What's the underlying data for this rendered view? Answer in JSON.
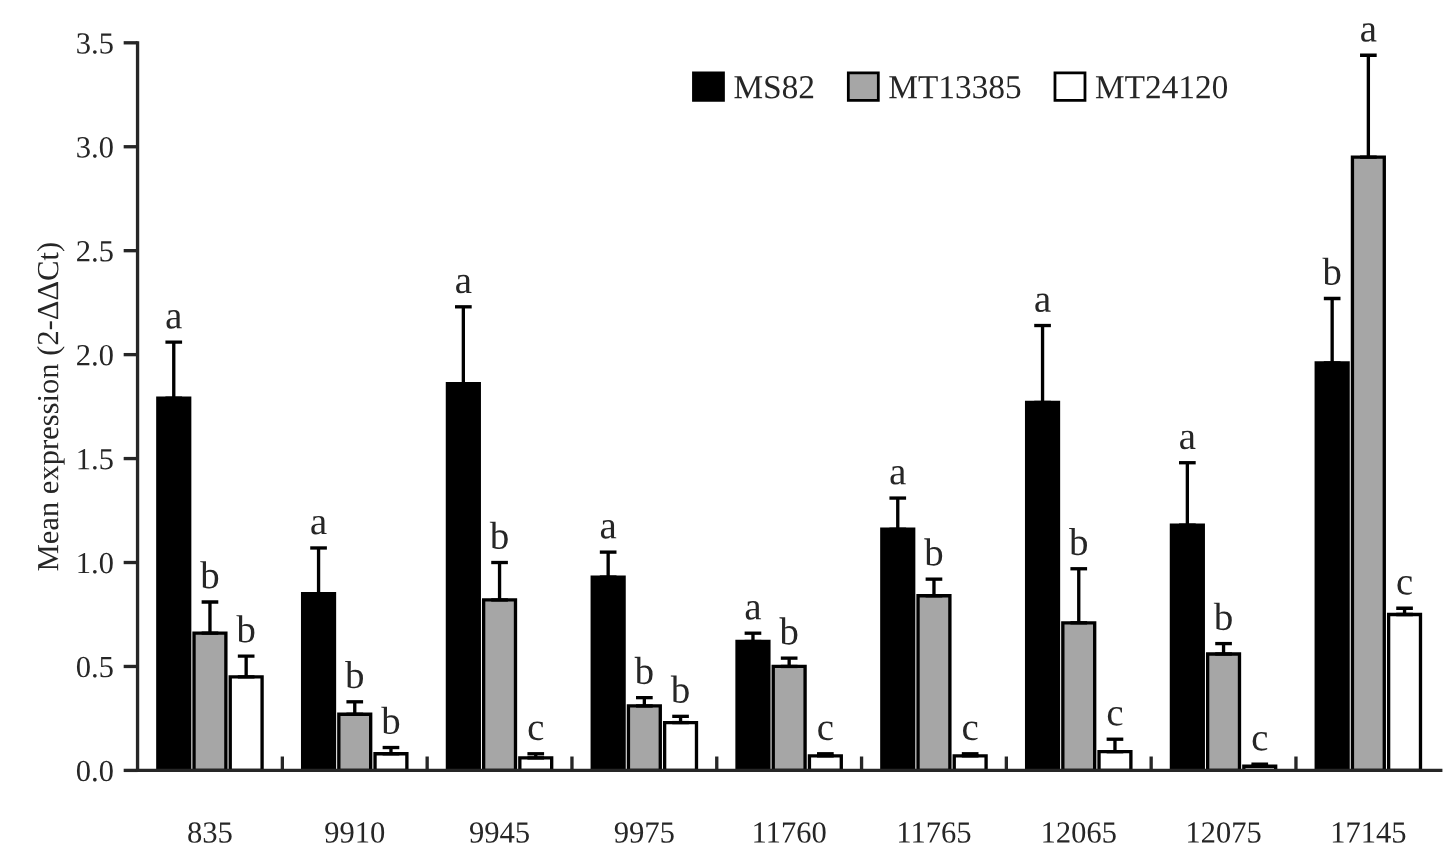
{
  "chart_data": {
    "type": "bar",
    "ylabel": "Mean expression (2-ΔΔCt)",
    "categories": [
      "835",
      "9910",
      "9945",
      "9975",
      "11760",
      "11765",
      "12065",
      "12075",
      "17145"
    ],
    "series": [
      {
        "name": "MS82",
        "color": "#000000",
        "values": [
          1.79,
          0.85,
          1.86,
          0.93,
          0.62,
          1.16,
          1.77,
          1.18,
          1.96
        ],
        "errors": [
          [
            1.79,
            2.06
          ],
          [
            0.85,
            1.07
          ],
          [
            1.86,
            2.23
          ],
          [
            0.93,
            1.05
          ],
          [
            0.62,
            0.66
          ],
          [
            1.16,
            1.31
          ],
          [
            1.77,
            2.14
          ],
          [
            1.18,
            1.48
          ],
          [
            1.96,
            2.27
          ]
        ],
        "value_labels": [
          "a",
          "a",
          "a",
          "a",
          "a",
          "a",
          "a",
          "a",
          "b"
        ]
      },
      {
        "name": "MT13385",
        "color": "#a6a6a6",
        "values": [
          0.66,
          0.27,
          0.82,
          0.31,
          0.5,
          0.84,
          0.71,
          0.56,
          2.95
        ],
        "errors": [
          [
            0.66,
            0.81
          ],
          [
            0.27,
            0.33
          ],
          [
            0.82,
            1.0
          ],
          [
            0.31,
            0.35
          ],
          [
            0.5,
            0.54
          ],
          [
            0.84,
            0.92
          ],
          [
            0.71,
            0.97
          ],
          [
            0.56,
            0.61
          ],
          [
            2.95,
            3.44
          ]
        ],
        "value_labels": [
          "b",
          "b",
          "b",
          "b",
          "b",
          "b",
          "b",
          "b",
          "a"
        ]
      },
      {
        "name": "MT24120",
        "color": "#ffffff",
        "values": [
          0.45,
          0.08,
          0.06,
          0.23,
          0.07,
          0.07,
          0.09,
          0.02,
          0.75
        ],
        "errors": [
          [
            0.45,
            0.55
          ],
          [
            0.08,
            0.11
          ],
          [
            0.06,
            0.08
          ],
          [
            0.23,
            0.26
          ],
          [
            0.07,
            0.08
          ],
          [
            0.07,
            0.08
          ],
          [
            0.09,
            0.15
          ],
          [
            0.02,
            0.03
          ],
          [
            0.75,
            0.78
          ]
        ],
        "value_labels": [
          "b",
          "b",
          "c",
          "b",
          "c",
          "c",
          "c",
          "c",
          "c"
        ]
      }
    ],
    "ylim": [
      0,
      3.5
    ],
    "yticks": [
      {
        "value": 0,
        "label": "0.0"
      },
      {
        "value": 0.5,
        "label": "0.5"
      },
      {
        "value": 1,
        "label": "1.0"
      },
      {
        "value": 1.5,
        "label": "1.5"
      },
      {
        "value": 2,
        "label": "2.0"
      },
      {
        "value": 2.5,
        "label": "2.5"
      },
      {
        "value": 3,
        "label": "3.0"
      },
      {
        "value": 3.5,
        "label": "3.5"
      }
    ],
    "grid": false,
    "legend": "top right"
  }
}
